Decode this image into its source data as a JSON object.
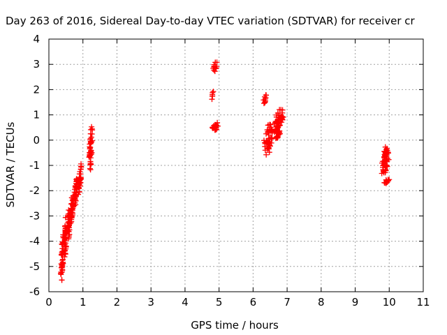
{
  "chart_data": {
    "type": "scatter",
    "title": "Day 263 of 2016, Sidereal Day-to-day VTEC variation (SDTVAR) for receiver cr",
    "xlabel": "GPS time / hours",
    "ylabel": "SDTVAR / TECUs",
    "xlim": [
      0,
      11
    ],
    "ylim": [
      -6,
      4
    ],
    "x_ticks": [
      "0",
      "1",
      "2",
      "3",
      "4",
      "5",
      "6",
      "7",
      "8",
      "9",
      "10",
      "11"
    ],
    "y_ticks": [
      "-6",
      "-5",
      "-4",
      "-3",
      "-2",
      "-1",
      "0",
      "1",
      "2",
      "3",
      "4"
    ],
    "grid": true,
    "marker": "+",
    "marker_color": "#ff0000",
    "point_groups": [
      {
        "x_range": [
          0.33,
          0.45
        ],
        "y_range": [
          -5.8,
          -3.6
        ],
        "count": 45
      },
      {
        "x_range": [
          0.42,
          0.55
        ],
        "y_range": [
          -4.8,
          -3.0
        ],
        "count": 40
      },
      {
        "x_range": [
          0.52,
          0.65
        ],
        "y_range": [
          -4.0,
          -2.5
        ],
        "count": 40
      },
      {
        "x_range": [
          0.62,
          0.75
        ],
        "y_range": [
          -3.4,
          -2.0
        ],
        "count": 40
      },
      {
        "x_range": [
          0.72,
          0.86
        ],
        "y_range": [
          -2.8,
          -1.4
        ],
        "count": 40
      },
      {
        "x_range": [
          0.84,
          0.98
        ],
        "y_range": [
          -2.2,
          -0.9
        ],
        "count": 35
      },
      {
        "x_range": [
          1.15,
          1.3
        ],
        "y_range": [
          -1.3,
          0.65
        ],
        "count": 45
      },
      {
        "x_range": [
          4.78,
          4.84
        ],
        "y_range": [
          1.6,
          1.95
        ],
        "count": 6
      },
      {
        "x_range": [
          4.78,
          4.98
        ],
        "y_range": [
          2.7,
          3.15
        ],
        "count": 12
      },
      {
        "x_range": [
          4.75,
          5.02
        ],
        "y_range": [
          0.3,
          0.8
        ],
        "count": 20
      },
      {
        "x_range": [
          6.28,
          6.4
        ],
        "y_range": [
          1.3,
          1.9
        ],
        "count": 10
      },
      {
        "x_range": [
          6.25,
          6.65
        ],
        "y_range": [
          -0.6,
          0.8
        ],
        "count": 50
      },
      {
        "x_range": [
          6.55,
          6.95
        ],
        "y_range": [
          0.2,
          1.3
        ],
        "count": 60
      },
      {
        "x_range": [
          6.6,
          6.85
        ],
        "y_range": [
          0.0,
          0.4
        ],
        "count": 15
      },
      {
        "x_range": [
          9.72,
          10.05
        ],
        "y_range": [
          -1.4,
          -0.25
        ],
        "count": 60
      },
      {
        "x_range": [
          9.8,
          10.05
        ],
        "y_range": [
          -1.75,
          -1.55
        ],
        "count": 15
      }
    ]
  }
}
